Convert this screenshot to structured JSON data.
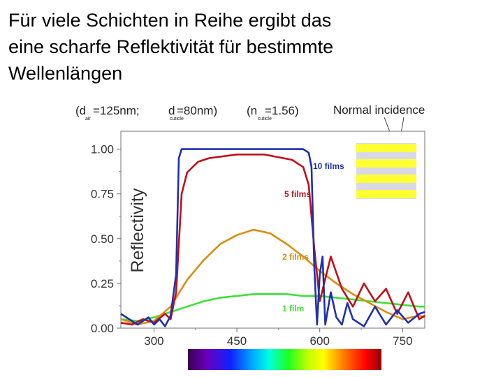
{
  "slide": {
    "title_lines": [
      "Für viele Schichten in Reihe ergibt das",
      "eine scharfe Reflektivität für bestimmte",
      "Wellenlängen"
    ]
  },
  "figure": {
    "params": {
      "d_air": "(d",
      "d_air_sub": "air",
      "d_air_val": "=125nm;",
      "d_cut": "d",
      "d_cut_sub": "cuticle",
      "d_cut_val": "=80nm)",
      "n_cut": "(n",
      "n_cut_sub": "cuticle",
      "n_cut_val": "=1.56)"
    },
    "incidence_label": "Normal incidence",
    "colors": {
      "10 films": "#1f2fb0",
      "5 films": "#c0101a",
      "2 films": "#e08a10",
      "1 film": "#3fe03a",
      "stack_layer": "#ffff33",
      "stack_gap": "#d8d8e8"
    }
  },
  "chart_data": {
    "type": "line",
    "title": "",
    "xlabel": "",
    "ylabel": "Reflectivity",
    "xlim": [
      240,
      790
    ],
    "ylim": [
      0,
      1.1
    ],
    "xticks": [
      "300",
      "450",
      "600",
      "750"
    ],
    "yticks": [
      "0.00",
      "0.25",
      "0.50",
      "0.75",
      "1.00"
    ],
    "grid": false,
    "series": [
      {
        "name": "10 films",
        "x": [
          240,
          270,
          290,
          300,
          310,
          320,
          330,
          340,
          345,
          350,
          355,
          360,
          370,
          400,
          450,
          500,
          550,
          570,
          580,
          585,
          590,
          595,
          600,
          605,
          610,
          620,
          630,
          640,
          650,
          660,
          680,
          700,
          720,
          740,
          760,
          780,
          790
        ],
        "values": [
          0.08,
          0.02,
          0.06,
          0.02,
          0.05,
          0.01,
          0.07,
          0.3,
          0.95,
          1.0,
          1.0,
          1.0,
          1.0,
          1.0,
          1.0,
          1.0,
          1.0,
          1.0,
          0.98,
          0.9,
          0.35,
          0.02,
          0.3,
          0.4,
          0.02,
          0.2,
          0.06,
          0.02,
          0.14,
          0.05,
          0.01,
          0.12,
          0.02,
          0.1,
          0.03,
          0.08,
          0.09
        ]
      },
      {
        "name": "5 films",
        "x": [
          240,
          260,
          280,
          300,
          320,
          330,
          340,
          350,
          360,
          380,
          400,
          450,
          500,
          550,
          570,
          580,
          590,
          600,
          620,
          640,
          660,
          680,
          700,
          720,
          740,
          760,
          780,
          790
        ],
        "values": [
          0.03,
          0.02,
          0.05,
          0.03,
          0.08,
          0.05,
          0.2,
          0.75,
          0.87,
          0.93,
          0.95,
          0.97,
          0.97,
          0.94,
          0.9,
          0.8,
          0.45,
          0.15,
          0.4,
          0.22,
          0.12,
          0.25,
          0.15,
          0.22,
          0.08,
          0.2,
          0.05,
          0.07
        ]
      },
      {
        "name": "2 films",
        "x": [
          240,
          270,
          300,
          330,
          360,
          390,
          420,
          450,
          480,
          510,
          540,
          570,
          600,
          630,
          660,
          690,
          720,
          750,
          780,
          790
        ],
        "values": [
          0.05,
          0.02,
          0.04,
          0.12,
          0.27,
          0.38,
          0.47,
          0.52,
          0.55,
          0.53,
          0.47,
          0.4,
          0.32,
          0.25,
          0.19,
          0.14,
          0.09,
          0.05,
          0.07,
          0.06
        ]
      },
      {
        "name": "1 film",
        "x": [
          240,
          270,
          300,
          330,
          360,
          390,
          420,
          450,
          480,
          510,
          540,
          570,
          600,
          630,
          660,
          690,
          720,
          750,
          780,
          790
        ],
        "values": [
          0.05,
          0.04,
          0.06,
          0.09,
          0.12,
          0.15,
          0.17,
          0.18,
          0.19,
          0.19,
          0.19,
          0.18,
          0.18,
          0.17,
          0.16,
          0.15,
          0.14,
          0.13,
          0.12,
          0.12
        ]
      }
    ],
    "legend_placement": "inline labels near curves"
  }
}
